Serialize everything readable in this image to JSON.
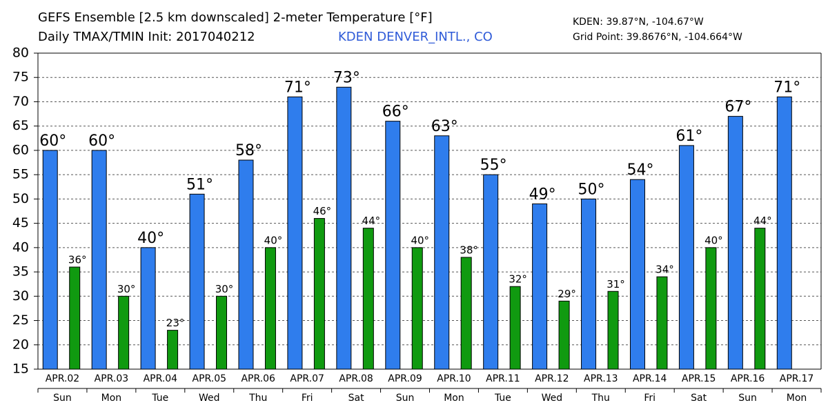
{
  "chart_data": {
    "type": "bar",
    "title": "GEFS Ensemble [2.5 km downscaled] 2-meter Temperature [°F]",
    "subtitle": "Daily TMAX/TMIN Init: 2017040212",
    "station": "KDEN DENVER_INTL., CO",
    "location": "KDEN: 39.87°N, -104.67°W",
    "grid_point": "Grid Point: 39.8676°N, -104.664°W",
    "categories": [
      "APR.02",
      "APR.03",
      "APR.04",
      "APR.05",
      "APR.06",
      "APR.07",
      "APR.08",
      "APR.09",
      "APR.10",
      "APR.11",
      "APR.12",
      "APR.13",
      "APR.14",
      "APR.15",
      "APR.16",
      "APR.17"
    ],
    "weekdays": [
      "Sun",
      "Mon",
      "Tue",
      "Wed",
      "Thu",
      "Fri",
      "Sat",
      "Sun",
      "Mon",
      "Tue",
      "Wed",
      "Thu",
      "Fri",
      "Sat",
      "Sun",
      "Mon"
    ],
    "series": [
      {
        "color": "#2f7ded",
        "values": [
          60,
          60,
          40,
          51,
          58,
          71,
          73,
          66,
          63,
          55,
          49,
          50,
          54,
          61,
          67,
          71
        ],
        "value_labels": [
          "60°",
          "60°",
          "40°",
          "51°",
          "58°",
          "71°",
          "73°",
          "66°",
          "63°",
          "55°",
          "49°",
          "50°",
          "54°",
          "61°",
          "67°",
          "71°"
        ]
      },
      {
        "color": "#109a10",
        "values": [
          36,
          30,
          23,
          30,
          40,
          46,
          44,
          40,
          38,
          32,
          29,
          31,
          34,
          40,
          44,
          null
        ],
        "value_labels": [
          "36°",
          "30°",
          "23°",
          "30°",
          "40°",
          "46°",
          "44°",
          "40°",
          "38°",
          "32°",
          "29°",
          "31°",
          "34°",
          "40°",
          "44°",
          null
        ]
      }
    ],
    "ylim": [
      15,
      80
    ],
    "yticks": [
      15,
      20,
      25,
      30,
      35,
      40,
      45,
      50,
      55,
      60,
      65,
      70,
      75,
      80
    ],
    "grid": true
  }
}
